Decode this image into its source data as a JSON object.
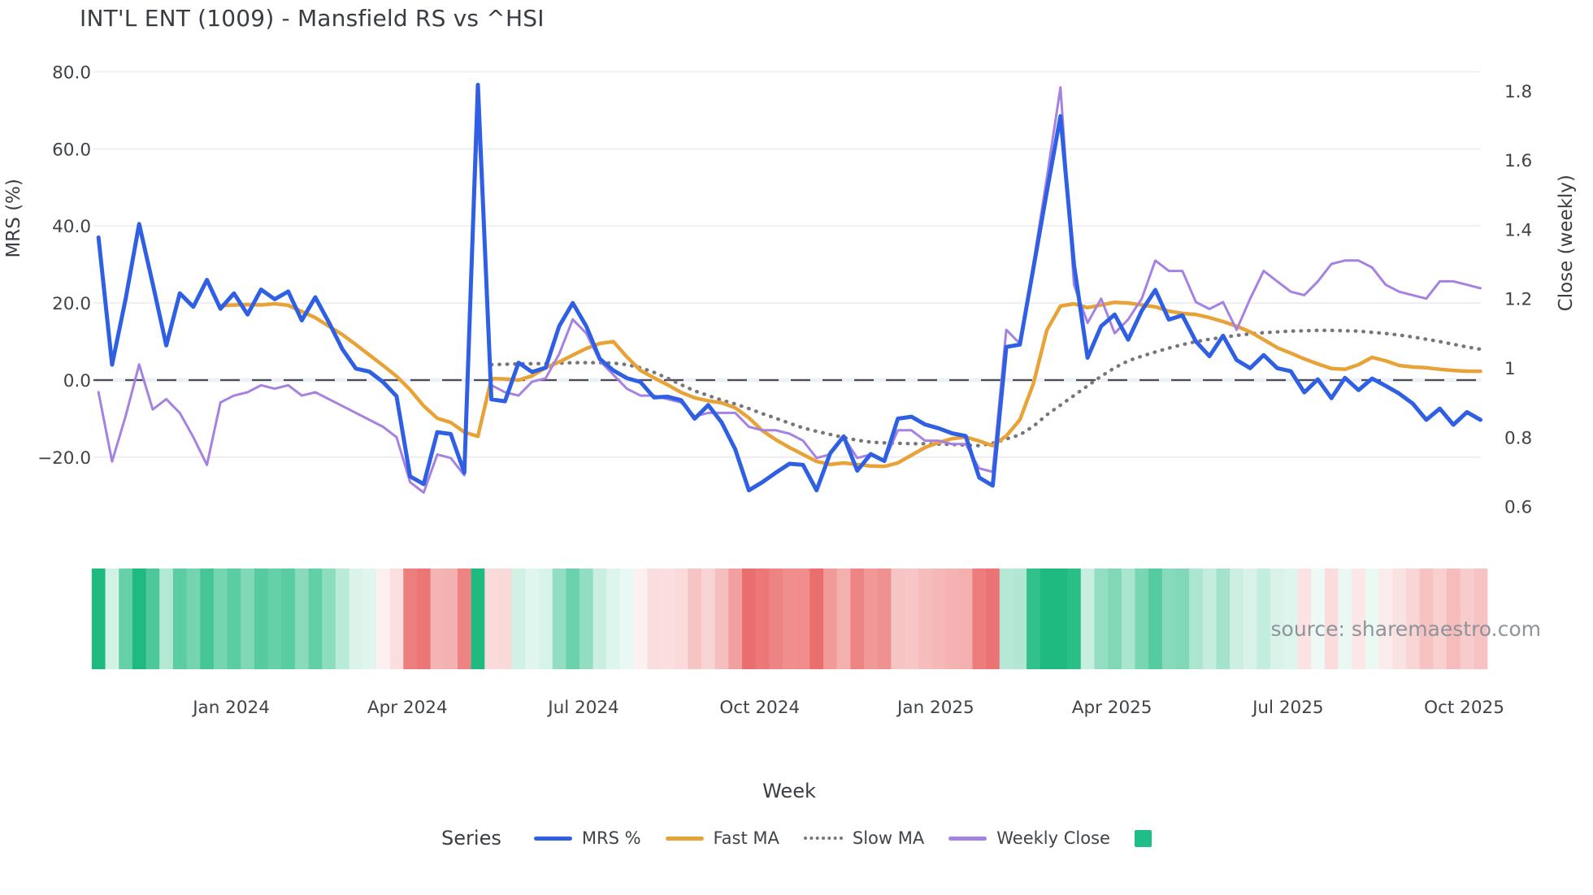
{
  "title": "INT'L ENT (1009) - Mansfield RS vs ^HSI",
  "source_note": "source: sharemaestro.com",
  "axes": {
    "x_title": "Week",
    "left_title": "MRS (%)",
    "right_title": "Close (weekly)",
    "left_ticks": [
      "80.0",
      "60.0",
      "40.0",
      "20.0",
      "0.0",
      "−20.0"
    ],
    "left_tick_values": [
      80,
      60,
      40,
      20,
      0,
      -20
    ],
    "right_ticks": [
      "1.8",
      "1.6",
      "1.4",
      "1.2",
      "1",
      "0.8",
      "0.6"
    ],
    "right_tick_values": [
      1.8,
      1.6,
      1.4,
      1.2,
      1.0,
      0.8,
      0.6
    ],
    "x_ticks": [
      "Jan 2024",
      "Apr 2024",
      "Jul 2024",
      "Oct 2024",
      "Jan 2025",
      "Apr 2025",
      "Jul 2025",
      "Oct 2025"
    ],
    "x_tick_weeks": [
      9.8,
      22.8,
      35.8,
      48.8,
      61.8,
      74.8,
      87.8,
      100.8
    ]
  },
  "legend": {
    "title": "Series",
    "items": [
      {
        "label": "MRS %",
        "type": "line",
        "color": "#2f5fe3"
      },
      {
        "label": "Fast MA",
        "type": "line",
        "color": "#e8a338"
      },
      {
        "label": "Slow MA",
        "type": "dotted",
        "color": "#76767c"
      },
      {
        "label": "Weekly Close",
        "type": "line",
        "color": "#a582e2"
      },
      {
        "label": "",
        "type": "square",
        "color": "#1fbd87"
      }
    ]
  },
  "chart_data": {
    "type": "line",
    "x_unit": "weekly, Oct 2023 - Oct 2025",
    "n_points": 103,
    "grid": "horizontal only",
    "legend_position": "bottom",
    "ylim_left": [
      -34,
      84
    ],
    "ylim_right": [
      0.56,
      1.93
    ],
    "zero_line": {
      "axis": "left",
      "value": 0,
      "style": "dashed",
      "color": "#4c4c54"
    },
    "series": [
      {
        "name": "MRS %",
        "axis": "left",
        "color": "#2f5fe3",
        "width": 5,
        "style": "solid",
        "values": [
          37,
          4,
          21,
          40.5,
          25,
          9,
          22.5,
          19,
          26,
          18.5,
          22.5,
          17,
          23.5,
          21,
          23,
          15.5,
          21.5,
          15,
          8,
          3,
          2.2,
          -0.5,
          -4.2,
          -25,
          -27,
          -13.5,
          -14,
          -24,
          76.6,
          -5,
          -5.5,
          4.5,
          2.1,
          3.2,
          14,
          20,
          14,
          5.5,
          2.5,
          0.5,
          -0.5,
          -4.5,
          -4.3,
          -5.2,
          -10,
          -6.5,
          -11,
          -18,
          -28.6,
          -26.5,
          -24,
          -21.7,
          -22,
          -28.6,
          -19,
          -14.6,
          -23.5,
          -19.2,
          -21,
          -10,
          -9.5,
          -11.5,
          -12.5,
          -13.8,
          -14.5,
          -25.3,
          -27.4,
          8.6,
          9.2,
          29,
          49,
          68.5,
          30,
          5.8,
          14,
          17,
          10.5,
          18,
          23.4,
          15.7,
          16.8,
          10,
          6.2,
          11.5,
          5.2,
          3.1,
          6.5,
          3.1,
          2.3,
          -3.2,
          0.2,
          -4.7,
          0.6,
          -2.6,
          0.4,
          -1.5,
          -3.5,
          -6.1,
          -10.3,
          -7.4,
          -11.6,
          -8.3,
          -10.3
        ]
      },
      {
        "name": "Fast MA",
        "axis": "left",
        "color": "#e8a338",
        "width": 4.5,
        "style": "solid",
        "values": [
          null,
          null,
          null,
          null,
          null,
          null,
          null,
          null,
          null,
          19.3,
          19.5,
          19.6,
          19.5,
          19.8,
          19.4,
          17.8,
          16.2,
          14,
          11.8,
          9.2,
          6.5,
          3.8,
          1,
          -2.5,
          -6.7,
          -9.9,
          -11,
          -13.5,
          -14.6,
          0.4,
          0.3,
          0,
          1.1,
          3.2,
          4.7,
          6.5,
          8.2,
          9.5,
          10,
          6,
          2.5,
          0.6,
          -1.2,
          -3.2,
          -4.6,
          -5.4,
          -5.9,
          -7.2,
          -9.8,
          -13.1,
          -15.5,
          -17.5,
          -19.3,
          -21.1,
          -21.9,
          -21.5,
          -21.9,
          -22.3,
          -22.4,
          -21.5,
          -19.5,
          -17.5,
          -16.2,
          -15.2,
          -14.8,
          -15.8,
          -17,
          -14.5,
          -10.3,
          -1,
          13,
          19.2,
          19.8,
          18.8,
          19.5,
          20.2,
          20,
          19.5,
          19,
          17.9,
          17.3,
          17,
          16.2,
          15.2,
          14,
          12.5,
          10.5,
          8.4,
          7,
          5.5,
          4.2,
          3,
          2.8,
          4,
          5.9,
          5,
          3.8,
          3.4,
          3.2,
          2.8,
          2.5,
          2.3,
          2.3
        ]
      },
      {
        "name": "Slow MA",
        "axis": "left",
        "color": "#76767c",
        "width": 4,
        "style": "dotted",
        "values": [
          null,
          null,
          null,
          null,
          null,
          null,
          null,
          null,
          null,
          null,
          null,
          null,
          null,
          null,
          null,
          null,
          null,
          null,
          null,
          null,
          null,
          null,
          null,
          null,
          null,
          null,
          null,
          null,
          null,
          4,
          4.1,
          4.2,
          4.25,
          4.3,
          4.4,
          4.5,
          4.5,
          4.5,
          4.4,
          4,
          3.2,
          2,
          0.5,
          -1.2,
          -2.8,
          -4,
          -5.2,
          -6.2,
          -7.4,
          -8.7,
          -9.9,
          -11.2,
          -12.4,
          -13.3,
          -14.1,
          -14.9,
          -15.6,
          -16.1,
          -16.3,
          -16.4,
          -16.5,
          -16.5,
          -16.6,
          -16.7,
          -16.9,
          -17,
          -16.4,
          -15.3,
          -14.2,
          -12,
          -9,
          -6.5,
          -4,
          -1.5,
          1,
          3.2,
          5,
          6.2,
          7.3,
          8.3,
          9.2,
          10,
          10.6,
          11.1,
          11.6,
          12,
          12.3,
          12.5,
          12.7,
          12.8,
          12.9,
          12.9,
          12.8,
          12.7,
          12.4,
          12.1,
          11.7,
          11.2,
          10.6,
          10,
          9.3,
          8.6,
          8
        ]
      },
      {
        "name": "Weekly Close",
        "axis": "right",
        "color": "#a582e2",
        "width": 3,
        "style": "solid",
        "values": [
          0.93,
          0.73,
          0.86,
          1.01,
          0.88,
          0.91,
          0.87,
          0.8,
          0.72,
          0.9,
          0.92,
          0.93,
          0.95,
          0.94,
          0.95,
          0.92,
          0.93,
          0.91,
          0.89,
          0.87,
          0.85,
          0.83,
          0.8,
          0.67,
          0.64,
          0.75,
          0.74,
          0.69,
          1.73,
          0.95,
          0.93,
          0.92,
          0.96,
          0.97,
          1.04,
          1.14,
          1.1,
          1.02,
          0.98,
          0.94,
          0.92,
          0.92,
          0.91,
          0.9,
          0.86,
          0.87,
          0.87,
          0.87,
          0.83,
          0.82,
          0.82,
          0.81,
          0.79,
          0.74,
          0.75,
          0.8,
          0.74,
          0.75,
          0.73,
          0.82,
          0.82,
          0.79,
          0.79,
          0.78,
          0.78,
          0.71,
          0.7,
          1.11,
          1.07,
          1.3,
          1.55,
          1.81,
          1.24,
          1.13,
          1.2,
          1.1,
          1.14,
          1.2,
          1.31,
          1.28,
          1.28,
          1.19,
          1.17,
          1.19,
          1.11,
          1.2,
          1.28,
          1.25,
          1.22,
          1.21,
          1.25,
          1.3,
          1.31,
          1.31,
          1.29,
          1.24,
          1.22,
          1.21,
          1.2,
          1.25,
          1.25,
          1.24,
          1.23
        ]
      }
    ],
    "heatmap": {
      "description": "weekly strip below plot, color-coded by MRS % value",
      "derived_from": "MRS %",
      "positive_color": "#1fba80",
      "negative_color": "#e95e5e",
      "neutral_color": "#ffffff",
      "intensity_cap": 32
    }
  }
}
